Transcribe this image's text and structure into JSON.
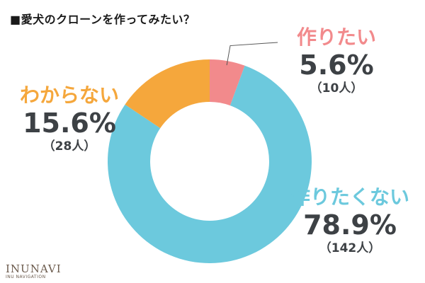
{
  "title": "■愛犬のクローンを作ってみたい？",
  "chart_data": {
    "type": "pie",
    "variant": "donut",
    "title": "■愛犬のクローンを作ってみたい？",
    "slices": [
      {
        "key": "want",
        "label": "作りたい",
        "value": 5.6,
        "percent_text": "5.6%",
        "count_text": "（10人）",
        "color": "#f28a8c"
      },
      {
        "key": "notwant",
        "label": "作りたくない",
        "value": 78.9,
        "percent_text": "78.9%",
        "count_text": "（142人）",
        "color": "#6cc9dd"
      },
      {
        "key": "unsure",
        "label": "わからない",
        "value": 15.6,
        "percent_text": "15.6%",
        "count_text": "（28人）",
        "color": "#f5a73c"
      }
    ],
    "start_angle_deg": 0,
    "direction": "clockwise"
  },
  "logo": {
    "brand": "INUNAVI",
    "sub": "INU NAVIGATION"
  }
}
